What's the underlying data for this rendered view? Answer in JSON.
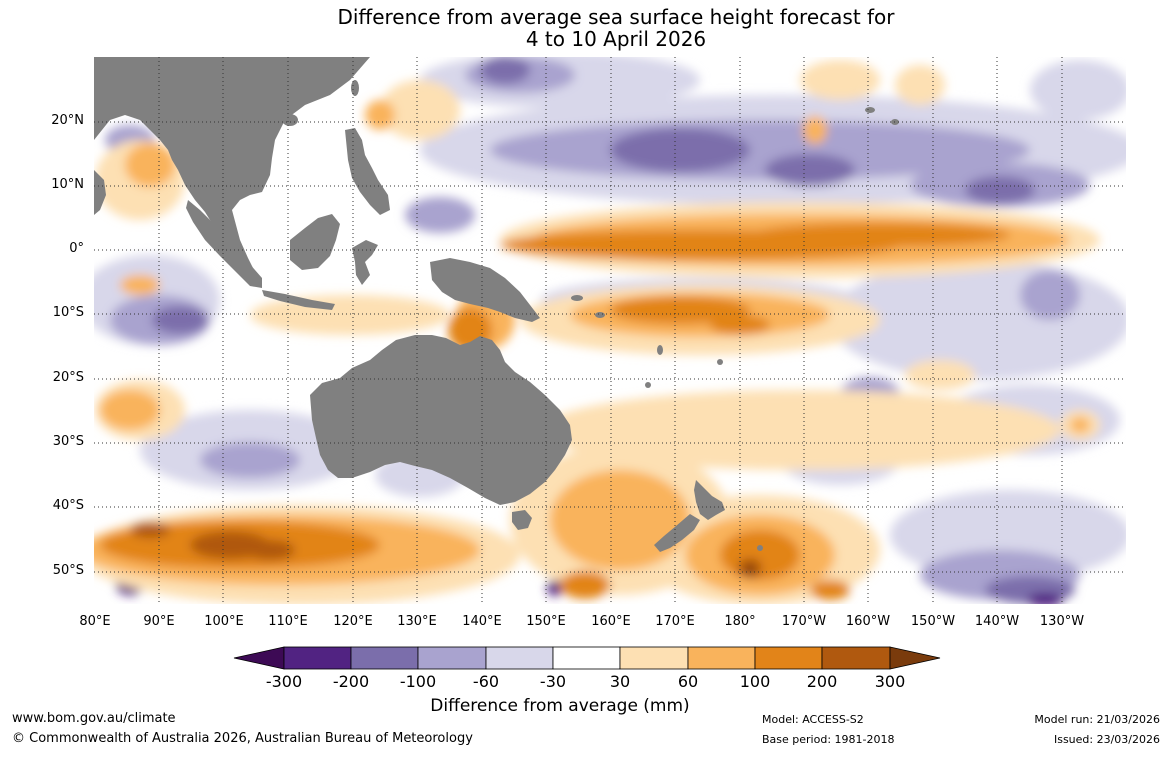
{
  "title": {
    "line1": "Difference from average sea surface height forecast for",
    "line2": "4 to 10 April 2026"
  },
  "map": {
    "lat_labels": [
      "20°N",
      "10°N",
      "0°",
      "10°S",
      "20°S",
      "30°S",
      "40°S",
      "50°S"
    ],
    "lon_labels": [
      "80°E",
      "90°E",
      "100°E",
      "110°E",
      "120°E",
      "130°E",
      "140°E",
      "150°E",
      "160°E",
      "170°E",
      "180°",
      "170°W",
      "160°W",
      "150°W",
      "140°W",
      "130°W"
    ],
    "land_color": "#808080"
  },
  "colorbar": {
    "labels": [
      "-300",
      "-200",
      "-100",
      "-60",
      "-30",
      "30",
      "60",
      "100",
      "200",
      "300"
    ],
    "colors": [
      "#3d0a55",
      "#512382",
      "#7b6eab",
      "#a9a3cf",
      "#d8d7ea",
      "#ffffff",
      "#fde0b3",
      "#f9b35c",
      "#e28419",
      "#b0590f",
      "#7a3b0c"
    ],
    "title": "Difference from average (mm)"
  },
  "footer": {
    "website": "www.bom.gov.au/climate",
    "copyright": "© Commonwealth of Australia 2026, Australian Bureau of Meteorology",
    "model": "Model: ACCESS-S2",
    "base_period": "Base period: 1981-2018",
    "model_run": "Model run: 21/03/2026",
    "issued": "Issued: 23/03/2026"
  }
}
